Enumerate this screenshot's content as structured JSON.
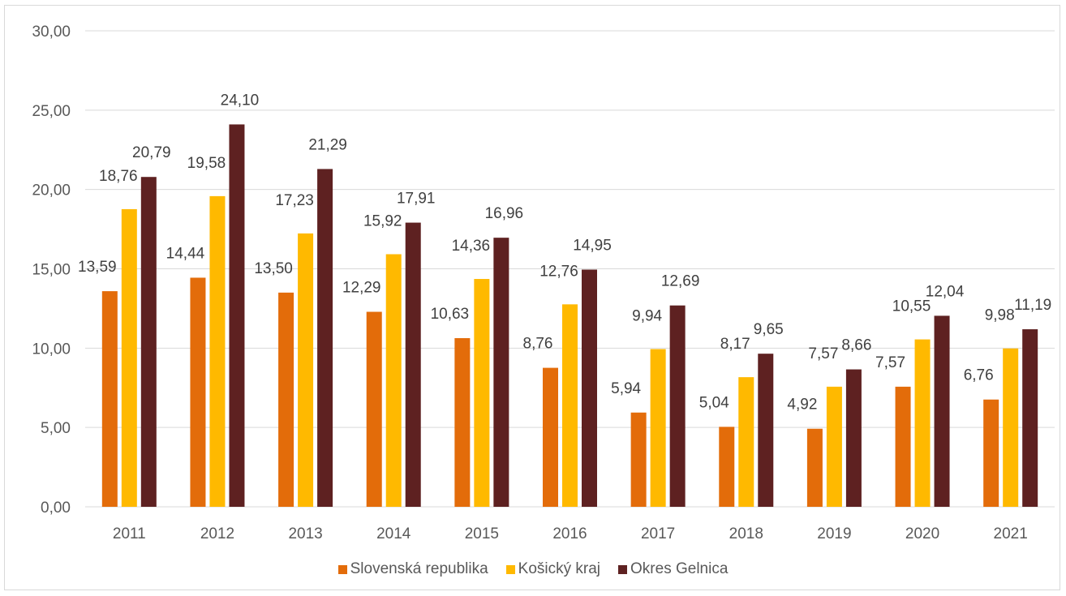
{
  "chart_data": {
    "type": "bar",
    "categories": [
      "2011",
      "2012",
      "2013",
      "2014",
      "2015",
      "2016",
      "2017",
      "2018",
      "2019",
      "2020",
      "2021"
    ],
    "series": [
      {
        "name": "Slovenská republika",
        "color": "#E36C0A",
        "values": [
          13.59,
          14.44,
          13.5,
          12.29,
          10.63,
          8.76,
          5.94,
          5.04,
          4.92,
          7.57,
          6.76
        ],
        "labels": [
          "13,59",
          "14,44",
          "13,50",
          "12,29",
          "10,63",
          "8,76",
          "5,94",
          "5,04",
          "4,92",
          "7,57",
          "6,76"
        ]
      },
      {
        "name": "Košický kraj",
        "color": "#FFB900",
        "values": [
          18.76,
          19.58,
          17.23,
          15.92,
          14.36,
          12.76,
          9.94,
          8.17,
          7.57,
          10.55,
          9.98
        ],
        "labels": [
          "18,76",
          "19,58",
          "17,23",
          "15,92",
          "14,36",
          "12,76",
          "9,94",
          "8,17",
          "7,57",
          "10,55",
          "9,98"
        ]
      },
      {
        "name": "Okres Gelnica",
        "color": "#5E2121",
        "values": [
          20.79,
          24.1,
          21.29,
          17.91,
          16.96,
          14.95,
          12.69,
          9.65,
          8.66,
          12.04,
          11.19
        ],
        "labels": [
          "20,79",
          "24,10",
          "21,29",
          "17,91",
          "16,96",
          "14,95",
          "12,69",
          "9,65",
          "8,66",
          "12,04",
          "11,19"
        ]
      }
    ],
    "ylim": [
      0,
      30
    ],
    "yticks": [
      0,
      5,
      10,
      15,
      20,
      25,
      30
    ],
    "ytick_labels": [
      "0,00",
      "5,00",
      "10,00",
      "15,00",
      "20,00",
      "25,00",
      "30,00"
    ],
    "grid": true,
    "legend_position": "bottom"
  }
}
